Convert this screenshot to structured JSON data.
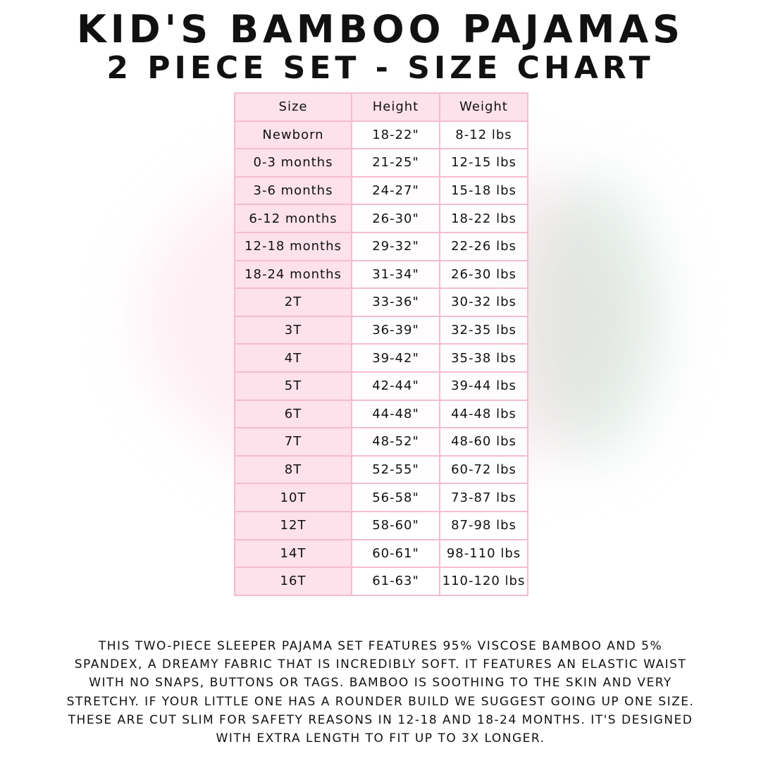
{
  "title": {
    "line1": "KID'S BAMBOO PAJAMAS",
    "line2": "2 PIECE SET - SIZE CHART"
  },
  "colors": {
    "header_pink": "#fde1eb",
    "border_pink": "#f6bcd0",
    "text": "#111111"
  },
  "table": {
    "headers": [
      "Size",
      "Height",
      "Weight"
    ],
    "rows": [
      [
        "Newborn",
        "18-22\"",
        "8-12 lbs"
      ],
      [
        "0-3 months",
        "21-25\"",
        "12-15 lbs"
      ],
      [
        "3-6 months",
        "24-27\"",
        "15-18 lbs"
      ],
      [
        "6-12 months",
        "26-30\"",
        "18-22 lbs"
      ],
      [
        "12-18 months",
        "29-32\"",
        "22-26 lbs"
      ],
      [
        "18-24 months",
        "31-34\"",
        "26-30 lbs"
      ],
      [
        "2T",
        "33-36\"",
        "30-32 lbs"
      ],
      [
        "3T",
        "36-39\"",
        "32-35 lbs"
      ],
      [
        "4T",
        "39-42\"",
        "35-38 lbs"
      ],
      [
        "5T",
        "42-44\"",
        "39-44 lbs"
      ],
      [
        "6T",
        "44-48\"",
        "44-48 lbs"
      ],
      [
        "7T",
        "48-52\"",
        "48-60 lbs"
      ],
      [
        "8T",
        "52-55\"",
        "60-72 lbs"
      ],
      [
        "10T",
        "56-58\"",
        "73-87 lbs"
      ],
      [
        "12T",
        "58-60\"",
        "87-98 lbs"
      ],
      [
        "14T",
        "60-61\"",
        "98-110 lbs"
      ],
      [
        "16T",
        "61-63\"",
        "110-120 lbs"
      ]
    ]
  },
  "description": [
    "THIS TWO-PIECE SLEEPER PAJAMA SET FEATURES 95% VISCOSE BAMBOO AND 5%",
    "SPANDEX, A DREAMY FABRIC THAT IS INCREDIBLY SOFT. IT FEATURES AN ELASTIC WAIST",
    "WITH NO SNAPS, BUTTONS OR TAGS. BAMBOO IS SOOTHING TO THE SKIN AND VERY",
    "STRETCHY. IF YOUR LITTLE ONE HAS A ROUNDER BUILD WE SUGGEST GOING UP ONE SIZE.",
    "THESE ARE CUT SLIM FOR SAFETY REASONS IN 12-18 AND 18-24 MONTHS. IT'S DESIGNED",
    "WITH EXTRA LENGTH TO FIT UP TO 3X LONGER."
  ]
}
